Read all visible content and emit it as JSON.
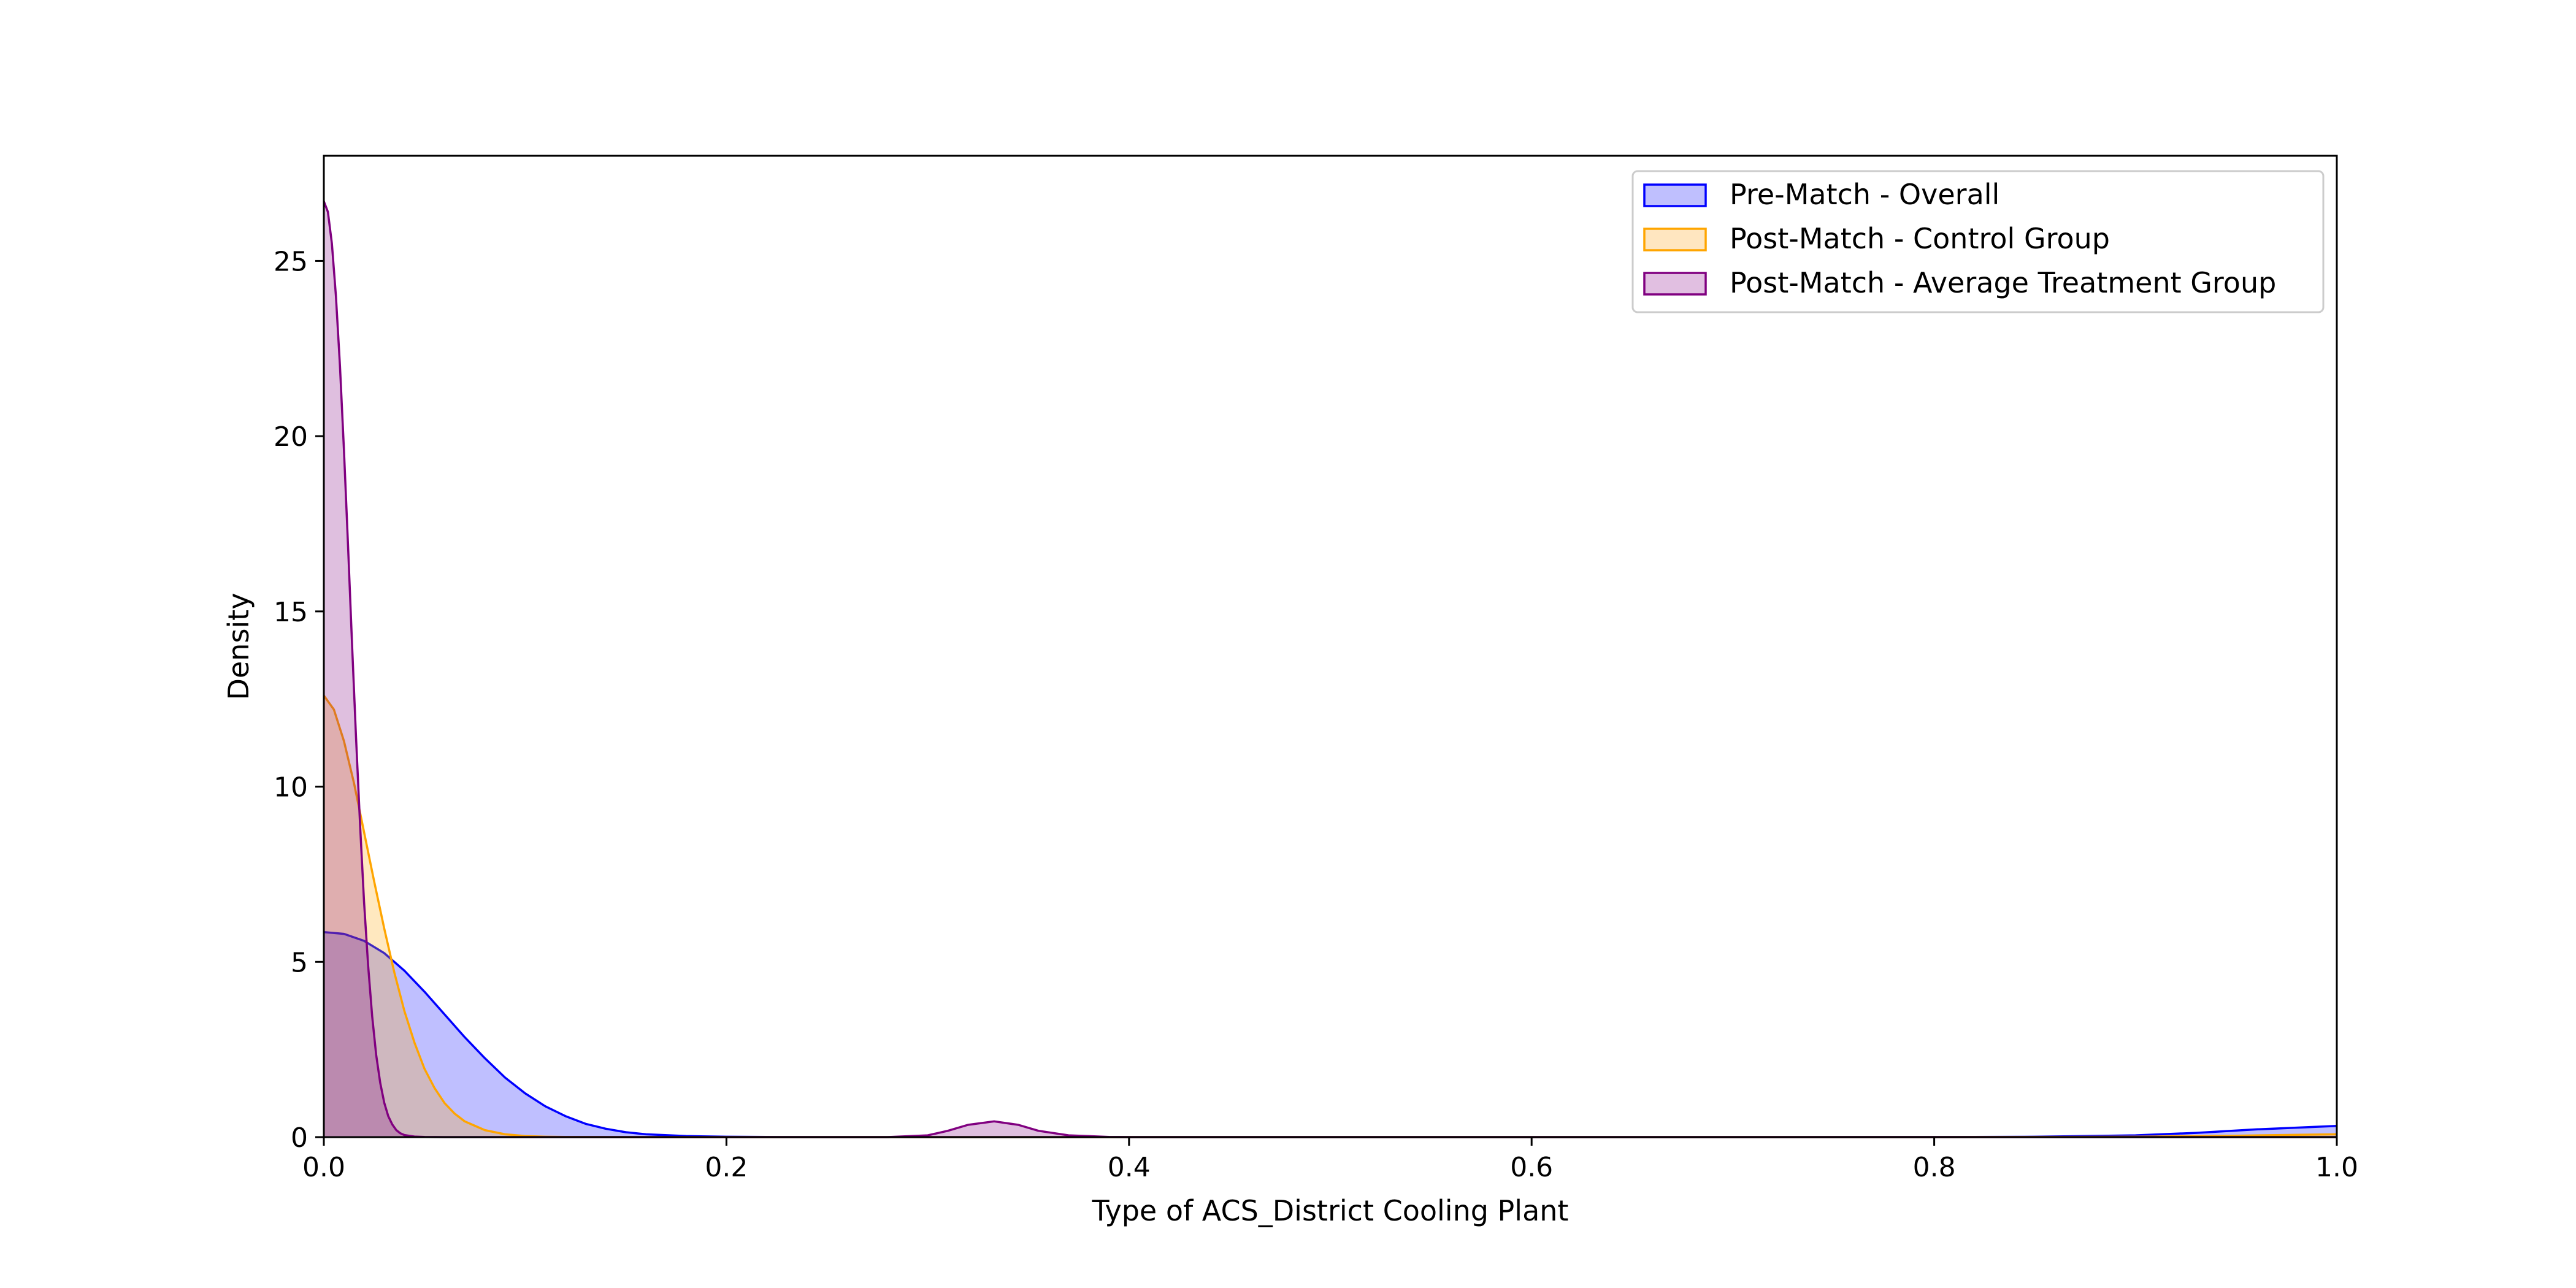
{
  "chart_data": {
    "type": "area",
    "title": "",
    "xlabel": "Type of ACS_District Cooling Plant",
    "ylabel": "Density",
    "xlim": [
      0.0,
      1.0
    ],
    "ylim": [
      0,
      28
    ],
    "xticks": [
      0.0,
      0.2,
      0.4,
      0.6,
      0.8,
      1.0
    ],
    "xtick_labels": [
      "0.0",
      "0.2",
      "0.4",
      "0.6",
      "0.8",
      "1.0"
    ],
    "yticks": [
      0,
      5,
      10,
      15,
      20,
      25
    ],
    "ytick_labels": [
      "0",
      "5",
      "10",
      "15",
      "20",
      "25"
    ],
    "grid": false,
    "legend_position": "top-right",
    "series": [
      {
        "name": "Pre-Match - Overall",
        "color": "#0000ff",
        "fill": "#bfbffe",
        "x": [
          0.0,
          0.01,
          0.02,
          0.03,
          0.04,
          0.05,
          0.06,
          0.07,
          0.08,
          0.09,
          0.1,
          0.11,
          0.12,
          0.13,
          0.14,
          0.15,
          0.16,
          0.18,
          0.2,
          0.22,
          0.25,
          0.3,
          0.4,
          0.5,
          0.6,
          0.7,
          0.8,
          0.85,
          0.9,
          0.93,
          0.96,
          1.0
        ],
        "y": [
          5.85,
          5.8,
          5.6,
          5.25,
          4.75,
          4.15,
          3.5,
          2.85,
          2.25,
          1.7,
          1.25,
          0.88,
          0.6,
          0.38,
          0.24,
          0.14,
          0.08,
          0.03,
          0.01,
          0.004,
          0.0,
          0.0,
          0.0,
          0.0,
          0.0,
          0.0,
          0.002,
          0.01,
          0.05,
          0.12,
          0.22,
          0.32
        ]
      },
      {
        "name": "Post-Match - Control Group",
        "color": "#ffa500",
        "fill": "#ffe6c0",
        "x": [
          0.0,
          0.005,
          0.01,
          0.015,
          0.02,
          0.025,
          0.03,
          0.035,
          0.04,
          0.045,
          0.05,
          0.055,
          0.06,
          0.065,
          0.07,
          0.08,
          0.09,
          0.1,
          0.11,
          0.12,
          0.15,
          0.2,
          0.4,
          0.6,
          0.8,
          0.9,
          0.95,
          1.0
        ],
        "y": [
          12.6,
          12.2,
          11.3,
          10.1,
          8.7,
          7.3,
          5.95,
          4.7,
          3.6,
          2.7,
          1.95,
          1.4,
          0.97,
          0.67,
          0.45,
          0.2,
          0.08,
          0.03,
          0.01,
          0.004,
          0.0,
          0.0,
          0.0,
          0.0,
          0.0,
          0.01,
          0.04,
          0.08
        ]
      },
      {
        "name": "Post-Match - Average Treatment Group",
        "color": "#800080",
        "fill": "#e1bfe1",
        "x": [
          0.0,
          0.002,
          0.004,
          0.006,
          0.008,
          0.01,
          0.012,
          0.014,
          0.016,
          0.018,
          0.02,
          0.022,
          0.024,
          0.026,
          0.028,
          0.03,
          0.032,
          0.034,
          0.036,
          0.038,
          0.04,
          0.045,
          0.05,
          0.06,
          0.08,
          0.1,
          0.2,
          0.28,
          0.3,
          0.31,
          0.32,
          0.333,
          0.345,
          0.355,
          0.37,
          0.39,
          0.4,
          0.6,
          0.8,
          1.0
        ],
        "y": [
          26.7,
          26.4,
          25.5,
          24.0,
          22.0,
          19.6,
          16.9,
          14.1,
          11.4,
          8.9,
          6.7,
          4.9,
          3.45,
          2.35,
          1.55,
          0.98,
          0.6,
          0.36,
          0.2,
          0.11,
          0.06,
          0.015,
          0.004,
          0.0,
          0.0,
          0.0,
          0.0,
          0.0,
          0.05,
          0.18,
          0.35,
          0.45,
          0.35,
          0.18,
          0.05,
          0.005,
          0.0,
          0.0,
          0.0,
          0.0
        ]
      }
    ]
  }
}
